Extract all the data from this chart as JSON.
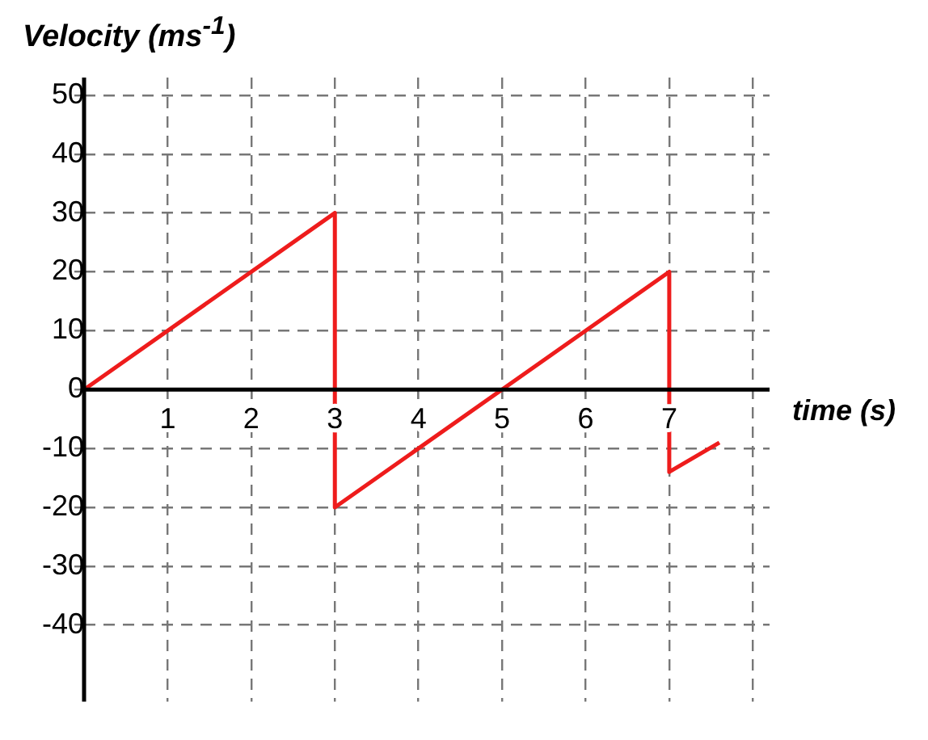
{
  "chart_data": {
    "type": "line",
    "xlabel": "time (s)",
    "ylabel": "Velocity (ms$^{-1}$)",
    "series": [
      {
        "color": "#ee1c1c",
        "x": [
          0,
          3,
          3,
          7,
          7,
          7.6
        ],
        "values": [
          0,
          30,
          -20,
          20,
          -14,
          -9
        ]
      }
    ],
    "xlim": [
      0,
      8.2
    ],
    "xticks": [
      1,
      2,
      3,
      4,
      5,
      6,
      7,
      {
        "value": 8,
        "label": null
      }
    ],
    "ylim": [
      -53,
      53
    ],
    "yticks": [
      -40,
      -30,
      -20,
      -10,
      0,
      10,
      20,
      30,
      40,
      50
    ],
    "grid": true,
    "legend": false,
    "marker": "none",
    "line_style": "solid"
  }
}
